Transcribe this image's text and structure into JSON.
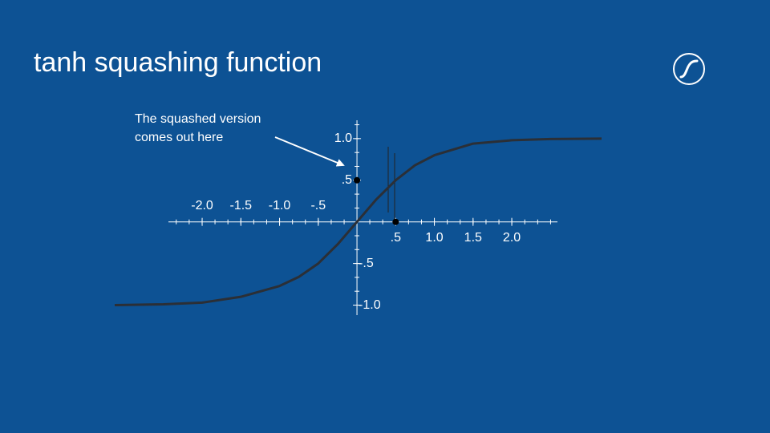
{
  "chart_data": {
    "type": "line",
    "title": "tanh squashing function",
    "annotation": [
      "The squashed version",
      "comes out here"
    ],
    "x": [
      -3.13,
      -2.5,
      -2,
      -1.5,
      -1,
      -0.75,
      -0.5,
      -0.25,
      0,
      0.25,
      0.5,
      0.75,
      1,
      1.5,
      2,
      2.5,
      3.16
    ],
    "series": [
      {
        "name": "tanh",
        "color": "#2b2f36",
        "values": [
          -1.0,
          -0.99,
          -0.97,
          -0.9,
          -0.77,
          -0.66,
          -0.5,
          -0.27,
          0,
          0.27,
          0.5,
          0.68,
          0.8,
          0.94,
          0.98,
          0.995,
          1.0
        ]
      }
    ],
    "points": {
      "x": [
        0,
        0.5
      ],
      "y": [
        0.5,
        0
      ]
    },
    "xlim": [
      -3.13,
      3.16
    ],
    "ylim": [
      -1.12,
      1.22
    ],
    "xticks": [
      {
        "value": -2,
        "label": "-2.0"
      },
      {
        "value": -1.5,
        "label": "-1.5"
      },
      {
        "value": -1,
        "label": "-1.0"
      },
      {
        "value": -0.5,
        "label": "-.5"
      },
      {
        "value": 0.5,
        "label": ".5"
      },
      {
        "value": 1,
        "label": "1.0"
      },
      {
        "value": 1.5,
        "label": "1.5"
      },
      {
        "value": 2,
        "label": "2.0"
      }
    ],
    "yticks": [
      {
        "value": 1,
        "label": "1.0"
      },
      {
        "value": 0.5,
        "label": ".5"
      },
      {
        "value": -0.5,
        "label": "-.5"
      },
      {
        "value": -1,
        "label": "-1.0"
      }
    ]
  }
}
